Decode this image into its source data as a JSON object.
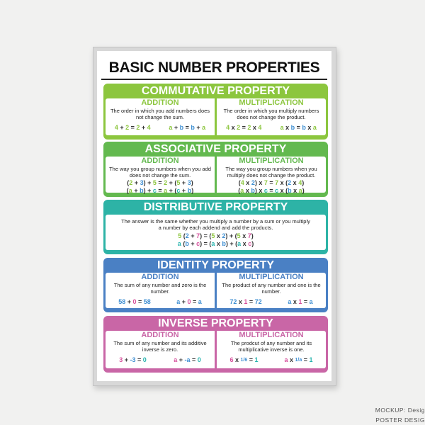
{
  "poster": {
    "title": "BASIC NUMBER PROPERTIES"
  },
  "colors": {
    "g": "#8dc63f",
    "b": "#3f8fd2",
    "p": "#d6509c",
    "t": "#26b3ad",
    "d": "#333333"
  },
  "sections": [
    {
      "title": "COMMUTATIVE PROPERTY",
      "color": "#8cc63e",
      "columns": [
        {
          "label": "ADDITION",
          "desc": "The order in which you add numbers does not change the sum.",
          "layout": "row",
          "equations": [
            [
              [
                "4",
                "g"
              ],
              [
                " + ",
                "d"
              ],
              [
                "2",
                "g"
              ],
              [
                " = ",
                "d"
              ],
              [
                "2",
                "g"
              ],
              [
                " + ",
                "d"
              ],
              [
                "4",
                "g"
              ]
            ],
            [
              [
                "a",
                "g"
              ],
              [
                " + ",
                "d"
              ],
              [
                "b",
                "b"
              ],
              [
                " = ",
                "d"
              ],
              [
                "b",
                "b"
              ],
              [
                " + ",
                "d"
              ],
              [
                "a",
                "g"
              ]
            ]
          ]
        },
        {
          "label": "MULTIPLICATION",
          "desc": "The order in which you multiply numbers does not change the product.",
          "layout": "row",
          "equations": [
            [
              [
                "4",
                "g"
              ],
              [
                " x ",
                "d"
              ],
              [
                "2",
                "g"
              ],
              [
                " = ",
                "d"
              ],
              [
                "2",
                "g"
              ],
              [
                " x ",
                "d"
              ],
              [
                "4",
                "g"
              ]
            ],
            [
              [
                "a",
                "g"
              ],
              [
                " x ",
                "d"
              ],
              [
                "b",
                "b"
              ],
              [
                " = ",
                "d"
              ],
              [
                "b",
                "b"
              ],
              [
                " x ",
                "d"
              ],
              [
                "a",
                "g"
              ]
            ]
          ]
        }
      ]
    },
    {
      "title": "ASSOCIATIVE PROPERTY",
      "color": "#63b94f",
      "columns": [
        {
          "label": "ADDITION",
          "desc": "The way you group numbers when you add does not change the sum.",
          "layout": "stack",
          "equations": [
            [
              [
                "(",
                "d"
              ],
              [
                "2",
                "g"
              ],
              [
                " + ",
                "d"
              ],
              [
                "3",
                "b"
              ],
              [
                ")",
                "d"
              ],
              [
                " + ",
                "d"
              ],
              [
                "5",
                "g"
              ],
              [
                " = ",
                "d"
              ],
              [
                "2",
                "g"
              ],
              [
                " + (",
                "d"
              ],
              [
                "5",
                "g"
              ],
              [
                " + ",
                "d"
              ],
              [
                "3",
                "b"
              ],
              [
                ")",
                "d"
              ]
            ],
            [
              [
                "(",
                "d"
              ],
              [
                "a",
                "g"
              ],
              [
                " + ",
                "d"
              ],
              [
                "b",
                "b"
              ],
              [
                ")",
                "d"
              ],
              [
                " + ",
                "d"
              ],
              [
                "c",
                "t"
              ],
              [
                " = ",
                "d"
              ],
              [
                "a",
                "g"
              ],
              [
                " + (",
                "d"
              ],
              [
                "c",
                "t"
              ],
              [
                " + ",
                "d"
              ],
              [
                "b",
                "b"
              ],
              [
                ")",
                "d"
              ]
            ]
          ]
        },
        {
          "label": "MULTIPLICATION",
          "desc": "The way you group numbers when you multiply does not change the product.",
          "layout": "stack",
          "equations": [
            [
              [
                "(",
                "d"
              ],
              [
                "4",
                "g"
              ],
              [
                " x ",
                "d"
              ],
              [
                "2",
                "b"
              ],
              [
                ")",
                "d"
              ],
              [
                " x ",
                "d"
              ],
              [
                "7",
                "g"
              ],
              [
                " = ",
                "d"
              ],
              [
                "7",
                "g"
              ],
              [
                " x (",
                "d"
              ],
              [
                "2",
                "b"
              ],
              [
                " x ",
                "d"
              ],
              [
                "4",
                "g"
              ],
              [
                ")",
                "d"
              ]
            ],
            [
              [
                "(",
                "d"
              ],
              [
                "a",
                "g"
              ],
              [
                " x ",
                "d"
              ],
              [
                "b",
                "b"
              ],
              [
                ")",
                "d"
              ],
              [
                " x ",
                "d"
              ],
              [
                "c",
                "t"
              ],
              [
                " = ",
                "d"
              ],
              [
                "c",
                "t"
              ],
              [
                " x (",
                "d"
              ],
              [
                "b",
                "b"
              ],
              [
                " x ",
                "d"
              ],
              [
                "a",
                "g"
              ],
              [
                ")",
                "d"
              ]
            ]
          ]
        }
      ]
    },
    {
      "title": "DISTRIBUTIVE PROPERTY",
      "color": "#2db3a6",
      "columns": [
        {
          "label": "",
          "desc": "The answer is the same whether you multiply a number by a sum or you multiply a number by each addend and add the products.",
          "layout": "stack",
          "equations": [
            [
              [
                "5",
                "g"
              ],
              [
                " (",
                "d"
              ],
              [
                "2",
                "b"
              ],
              [
                " + ",
                "d"
              ],
              [
                "7",
                "p"
              ],
              [
                ")",
                "d"
              ],
              [
                " = (",
                "d"
              ],
              [
                "5",
                "g"
              ],
              [
                " x ",
                "d"
              ],
              [
                "2",
                "b"
              ],
              [
                ")",
                "d"
              ],
              [
                " + (",
                "d"
              ],
              [
                "5",
                "g"
              ],
              [
                " x ",
                "d"
              ],
              [
                "7",
                "p"
              ],
              [
                ")",
                "d"
              ]
            ],
            [
              [
                "a",
                "t"
              ],
              [
                " (",
                "d"
              ],
              [
                "b",
                "b"
              ],
              [
                " + ",
                "d"
              ],
              [
                "c",
                "p"
              ],
              [
                ")",
                "d"
              ],
              [
                " = (",
                "d"
              ],
              [
                "a",
                "t"
              ],
              [
                " x ",
                "d"
              ],
              [
                "b",
                "b"
              ],
              [
                ")",
                "d"
              ],
              [
                " + (",
                "d"
              ],
              [
                "a",
                "t"
              ],
              [
                " x ",
                "d"
              ],
              [
                "c",
                "p"
              ],
              [
                ")",
                "d"
              ]
            ]
          ]
        }
      ]
    },
    {
      "title": "IDENTITY PROPERTY",
      "color": "#4a80c4",
      "columns": [
        {
          "label": "ADDITION",
          "desc": "The sum of any number and zero is the number.",
          "layout": "row",
          "equations": [
            [
              [
                "58",
                "b"
              ],
              [
                " + ",
                "d"
              ],
              [
                "0",
                "p"
              ],
              [
                " = ",
                "d"
              ],
              [
                "58",
                "b"
              ]
            ],
            [
              [
                "a",
                "b"
              ],
              [
                " + ",
                "d"
              ],
              [
                "0",
                "p"
              ],
              [
                " = ",
                "d"
              ],
              [
                "a",
                "b"
              ]
            ]
          ]
        },
        {
          "label": "MULTIPLICATION",
          "desc": "The product of any number and one is the number.",
          "layout": "row",
          "equations": [
            [
              [
                "72",
                "b"
              ],
              [
                " x ",
                "d"
              ],
              [
                "1",
                "p"
              ],
              [
                " = ",
                "d"
              ],
              [
                "72",
                "b"
              ]
            ],
            [
              [
                "a",
                "b"
              ],
              [
                " x ",
                "d"
              ],
              [
                "1",
                "p"
              ],
              [
                " = ",
                "d"
              ],
              [
                "a",
                "b"
              ]
            ]
          ]
        }
      ]
    },
    {
      "title": "INVERSE PROPERTY",
      "color": "#c966a6",
      "columns": [
        {
          "label": "ADDITION",
          "desc": "The sum of any number and its additive inverse is zero.",
          "layout": "row",
          "equations": [
            [
              [
                "3",
                "p"
              ],
              [
                " + ",
                "d"
              ],
              [
                " -3",
                "b"
              ],
              [
                " = ",
                "d"
              ],
              [
                "0",
                "t"
              ]
            ],
            [
              [
                "a",
                "p"
              ],
              [
                " + ",
                "d"
              ],
              [
                " -a",
                "b"
              ],
              [
                " = ",
                "d"
              ],
              [
                "0",
                "t"
              ]
            ]
          ]
        },
        {
          "label": "MULTIPLICATION",
          "desc": "The prodcut of any number and its multiplicative inverse is one.",
          "layout": "row",
          "equations": [
            [
              [
                "6",
                "p"
              ],
              [
                " x ",
                "d"
              ],
              [
                "1/6",
                "b",
                "frac"
              ],
              [
                " = ",
                "d"
              ],
              [
                "1",
                "t"
              ]
            ],
            [
              [
                "a",
                "p"
              ],
              [
                " x ",
                "d"
              ],
              [
                "1/a",
                "b",
                "frac"
              ],
              [
                " = ",
                "d"
              ],
              [
                "1",
                "t"
              ]
            ]
          ]
        }
      ]
    }
  ],
  "watermark": {
    "line1": "MOCKUP:  Desig",
    "line2": "POSTER  DESIG"
  }
}
